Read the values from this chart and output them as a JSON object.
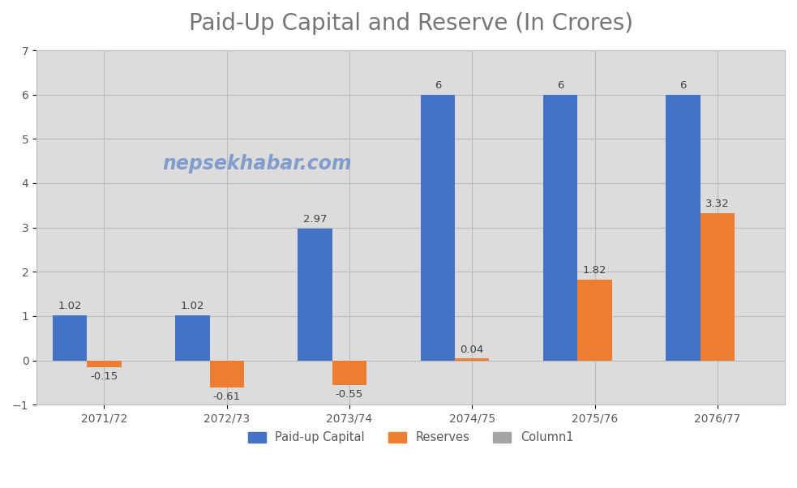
{
  "title": "Paid-Up Capital and Reserve (In Crores)",
  "categories": [
    "2071/72",
    "2072/73",
    "2073/74",
    "2074/75",
    "2075/76",
    "2076/77"
  ],
  "paid_up_capital": [
    1.02,
    1.02,
    2.97,
    6.0,
    6.0,
    6.0
  ],
  "reserves": [
    -0.15,
    -0.61,
    -0.55,
    0.04,
    1.82,
    3.32
  ],
  "column1": [
    0,
    0,
    0,
    0,
    0,
    0
  ],
  "bar_color_blue": "#4472C4",
  "bar_color_orange": "#ED7D31",
  "bar_color_gray": "#A5A5A5",
  "ylim": [
    -1,
    7
  ],
  "yticks": [
    -1,
    0,
    1,
    2,
    3,
    4,
    5,
    6,
    7
  ],
  "bar_width": 0.28,
  "watermark": "nepsekhabar.com",
  "legend_labels": [
    "Paid-up Capital",
    "Reserves",
    "Column1"
  ],
  "plot_bg_color": "#DCDCDC",
  "fig_bg_color": "#FFFFFF",
  "grid_color": "#BBBBBB",
  "title_color": "#757575",
  "title_fontsize": 20,
  "label_fontsize": 9.5,
  "tick_color": "#595959"
}
